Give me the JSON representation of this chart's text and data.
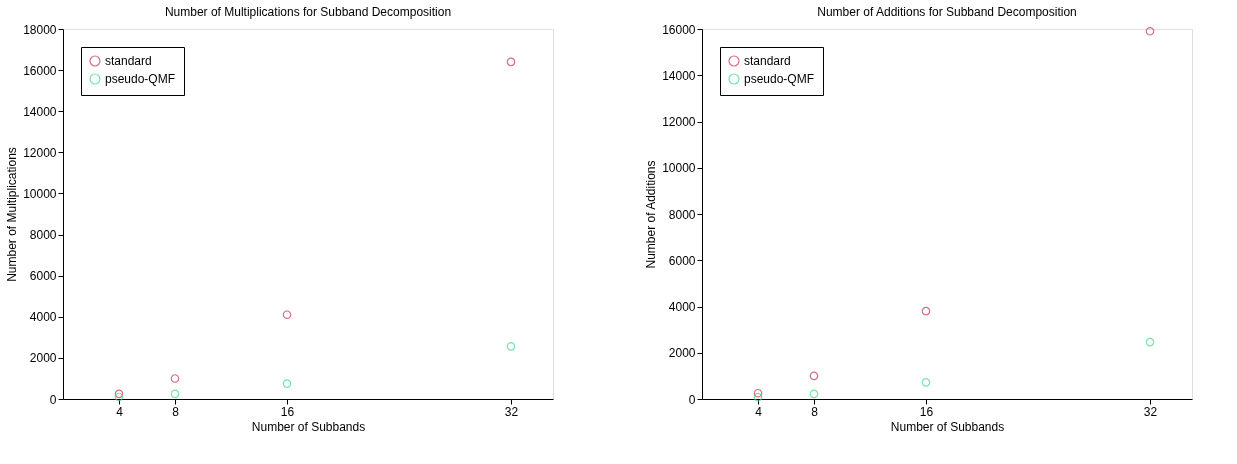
{
  "chart_data": [
    {
      "type": "scatter",
      "title": "Number of Multiplications for Subband Decomposition",
      "xlabel": "Number of Subbands",
      "ylabel": "Number of Multiplications",
      "x": [
        4,
        8,
        16,
        32
      ],
      "xlim": [
        0,
        35
      ],
      "xticks": [
        4,
        8,
        16,
        32
      ],
      "ylim": [
        0,
        18000
      ],
      "yticks": [
        0,
        2000,
        4000,
        6000,
        8000,
        10000,
        12000,
        14000,
        16000,
        18000
      ],
      "marker": "circle",
      "grid": false,
      "legend": "top left",
      "series": [
        {
          "name": "standard",
          "color": "#c8304a",
          "values": [
            250,
            1000,
            4100,
            16400
          ]
        },
        {
          "name": "pseudo-QMF",
          "color": "#40d880",
          "values": [
            100,
            250,
            750,
            2560
          ]
        }
      ]
    },
    {
      "type": "scatter",
      "title": "Number of Additions for Subband Decomposition",
      "xlabel": "Number of Subbands",
      "ylabel": "Number of Additions",
      "x": [
        4,
        8,
        16,
        32
      ],
      "xlim": [
        0,
        35
      ],
      "xticks": [
        4,
        8,
        16,
        32
      ],
      "ylim": [
        0,
        16000
      ],
      "yticks": [
        0,
        2000,
        4000,
        6000,
        8000,
        10000,
        12000,
        14000,
        16000
      ],
      "marker": "circle",
      "grid": false,
      "legend": "top left",
      "series": [
        {
          "name": "standard",
          "color": "#c8304a",
          "values": [
            250,
            1000,
            3800,
            15900
          ]
        },
        {
          "name": "pseudo-QMF",
          "color": "#40d880",
          "values": [
            80,
            220,
            720,
            2460
          ]
        }
      ]
    }
  ]
}
